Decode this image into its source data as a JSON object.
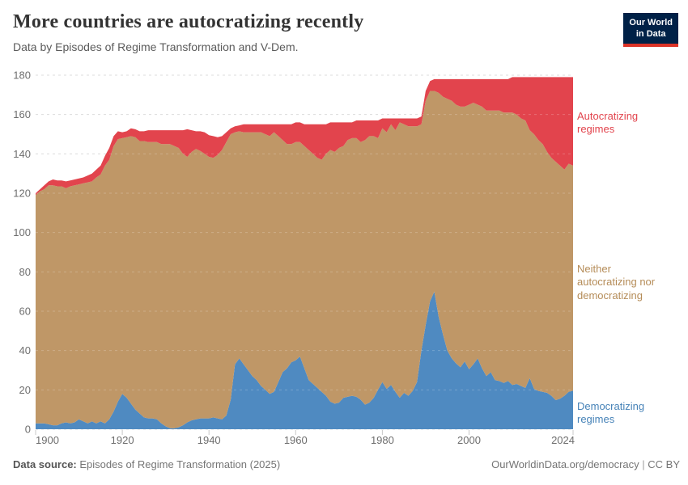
{
  "header": {
    "title": "More countries are autocratizing recently",
    "subtitle": "Data by Episodes of Regime Transformation and V-Dem.",
    "logo": {
      "line1": "Our World",
      "line2": "in Data"
    }
  },
  "footer": {
    "source_label": "Data source:",
    "source_value": " Episodes of Regime Transformation (2025)",
    "credit_link": "OurWorldinData.org/democracy",
    "divider": " | ",
    "license": "CC BY"
  },
  "colors": {
    "democratizing": "#4f8ac1",
    "neither": "#bf9767",
    "autocratizing": "#e2444d",
    "grid": "#dcdcdc",
    "tick_mark": "#c8c8c8",
    "axis_text": "#6e6e6e",
    "logo_navy": "#002147",
    "logo_red": "#dc3327"
  },
  "chart_data": {
    "type": "area",
    "stacked": true,
    "title": "More countries are autocratizing recently",
    "subtitle": "Data by Episodes of Regime Transformation and V-Dem.",
    "xlabel": "",
    "ylabel": "",
    "xlim": [
      1900,
      2024
    ],
    "ylim": [
      0,
      180
    ],
    "x_ticks": [
      1900,
      1920,
      1940,
      1960,
      1980,
      2000,
      2024
    ],
    "y_ticks": [
      0,
      20,
      40,
      60,
      80,
      100,
      120,
      140,
      160,
      180
    ],
    "grid": "dashed-horizontal",
    "legend_position": "right-annotations",
    "years": [
      1900,
      1901,
      1902,
      1903,
      1904,
      1905,
      1906,
      1907,
      1908,
      1909,
      1910,
      1911,
      1912,
      1913,
      1914,
      1915,
      1916,
      1917,
      1918,
      1919,
      1920,
      1921,
      1922,
      1923,
      1924,
      1925,
      1926,
      1927,
      1928,
      1929,
      1930,
      1931,
      1932,
      1933,
      1934,
      1935,
      1936,
      1937,
      1938,
      1939,
      1940,
      1941,
      1942,
      1943,
      1944,
      1945,
      1946,
      1947,
      1948,
      1949,
      1950,
      1951,
      1952,
      1953,
      1954,
      1955,
      1956,
      1957,
      1958,
      1959,
      1960,
      1961,
      1962,
      1963,
      1964,
      1965,
      1966,
      1967,
      1968,
      1969,
      1970,
      1971,
      1972,
      1973,
      1974,
      1975,
      1976,
      1977,
      1978,
      1979,
      1980,
      1981,
      1982,
      1983,
      1984,
      1985,
      1986,
      1987,
      1988,
      1989,
      1990,
      1991,
      1992,
      1993,
      1994,
      1995,
      1996,
      1997,
      1998,
      1999,
      2000,
      2001,
      2002,
      2003,
      2004,
      2005,
      2006,
      2007,
      2008,
      2009,
      2010,
      2011,
      2012,
      2013,
      2014,
      2015,
      2016,
      2017,
      2018,
      2019,
      2020,
      2021,
      2022,
      2023,
      2024
    ],
    "series": [
      {
        "id": "democratizing",
        "name": "Democratizing regimes",
        "color": "#4f8ac1",
        "values": [
          3,
          3,
          3,
          2.5,
          2,
          2,
          3,
          3.5,
          3,
          3.5,
          5,
          4,
          3,
          4,
          3,
          4,
          3,
          5,
          9,
          14,
          18,
          16,
          13,
          10,
          8,
          6,
          5.5,
          5.5,
          5,
          3,
          1.5,
          0.5,
          0.5,
          1,
          2,
          3.5,
          4.5,
          5,
          5.5,
          5.5,
          5.5,
          6,
          5.5,
          5,
          7,
          15,
          33,
          36,
          33,
          30,
          27,
          25,
          22,
          20,
          18,
          19,
          24,
          29,
          31,
          34,
          35,
          37,
          31,
          25,
          23,
          21,
          19,
          17,
          14,
          13,
          13.5,
          16,
          16.5,
          17,
          16.5,
          15,
          12.5,
          13.5,
          16,
          20,
          24,
          20.5,
          22.5,
          19,
          16,
          18.5,
          17,
          19.5,
          24,
          40,
          53,
          65,
          70,
          57,
          48,
          40,
          36,
          33.5,
          31.5,
          34.5,
          30.5,
          33,
          36,
          31,
          27,
          29,
          25,
          24.5,
          23.5,
          24.5,
          22.5,
          23,
          22,
          21,
          26,
          20.5,
          19.5,
          19,
          18.5,
          17,
          14.8,
          15.5,
          17,
          19,
          19.6
        ]
      },
      {
        "id": "neither",
        "name": "Neither autocratizing nor democratizing",
        "color": "#bf9767",
        "values": [
          116,
          118,
          119,
          121.5,
          122,
          121.5,
          120.5,
          119,
          120.5,
          120.5,
          119.5,
          121,
          122.5,
          122,
          125,
          125.5,
          131,
          132,
          135,
          133.5,
          130,
          132.5,
          136,
          138.5,
          138.5,
          140.5,
          140.5,
          140.5,
          141,
          142,
          143.5,
          144.5,
          143.5,
          142,
          138,
          135,
          136.5,
          137.5,
          136,
          134.5,
          133,
          132,
          134,
          137,
          139,
          135,
          118,
          115.5,
          118,
          121,
          124,
          126,
          129,
          130,
          131,
          132,
          125,
          118,
          114,
          111,
          111,
          109,
          113,
          117,
          117,
          117,
          118,
          123,
          128,
          128,
          129.5,
          128,
          130.5,
          131,
          131.5,
          131,
          134.5,
          135.5,
          133,
          128,
          129,
          130.5,
          132.5,
          133,
          140,
          136.5,
          137,
          134.5,
          130,
          115,
          114,
          107,
          102,
          114,
          121,
          128,
          131,
          131.5,
          132.5,
          129.5,
          134.5,
          133,
          129,
          133,
          135,
          133,
          137,
          137.5,
          137.5,
          136.5,
          138.5,
          137,
          136,
          136,
          126,
          129.5,
          127.5,
          126,
          122.5,
          121,
          121.2,
          118.5,
          115,
          116,
          114.4
        ]
      },
      {
        "id": "autocratizing",
        "name": "Autocratizing regimes",
        "color": "#e2444d",
        "values": [
          1,
          1,
          2,
          2,
          3,
          3,
          3,
          3.5,
          3,
          3,
          3,
          3,
          3.5,
          4,
          4,
          4.5,
          5,
          6,
          5,
          4,
          3,
          3,
          4,
          4,
          5,
          5,
          6,
          6,
          6,
          7,
          7,
          7,
          8,
          9,
          12,
          14,
          11,
          9,
          10,
          11,
          11,
          11,
          9,
          7,
          5,
          3,
          3,
          3,
          4,
          4,
          4,
          4,
          4,
          5,
          6,
          4,
          6,
          8,
          10,
          10,
          10,
          10,
          11,
          13,
          15,
          17,
          18,
          15,
          14,
          15,
          13,
          12,
          9,
          8,
          9,
          11,
          10,
          8,
          8,
          9,
          5,
          7,
          3,
          6,
          2,
          3,
          4,
          4,
          4,
          4,
          5,
          5,
          6,
          7,
          9,
          10,
          11,
          13,
          14,
          14,
          13,
          12,
          13,
          14,
          16,
          16,
          16,
          16,
          17,
          17,
          18,
          19,
          21,
          22,
          27,
          29,
          32,
          34,
          38,
          41,
          43,
          45,
          47,
          44,
          45
        ]
      }
    ],
    "total_countries": [
      120,
      122,
      124,
      126,
      127,
      126.5,
      126.5,
      126,
      126.5,
      127,
      127.5,
      128,
      129,
      130,
      132,
      134,
      139,
      143,
      149,
      151.5,
      151,
      151.5,
      153,
      152.5,
      151.5,
      151.5,
      152,
      152,
      152,
      152,
      152,
      152,
      152,
      152,
      152,
      152.5,
      152,
      151.5,
      151.5,
      151,
      149.5,
      149,
      148.5,
      149,
      151,
      153,
      154,
      154.5,
      155,
      155,
      155,
      155,
      155,
      155,
      155,
      155,
      155,
      155,
      155,
      155,
      156,
      156,
      155,
      155,
      155,
      155,
      155,
      155,
      156,
      156,
      156,
      156,
      156,
      156,
      157,
      157,
      157,
      157,
      157,
      157,
      158,
      158,
      158,
      158,
      158,
      158,
      158,
      158,
      158,
      159,
      172,
      177,
      178,
      178,
      178,
      178,
      178,
      178,
      178,
      178,
      178,
      178,
      178,
      178,
      178,
      178,
      178,
      178,
      178,
      178,
      179,
      179,
      179,
      179,
      179,
      179,
      179,
      179,
      179,
      179,
      179,
      179,
      179,
      179,
      179
    ],
    "note": "Stacked order bottom-to-top: democratizing, neither, autocratizing; sum equals total_countries."
  }
}
